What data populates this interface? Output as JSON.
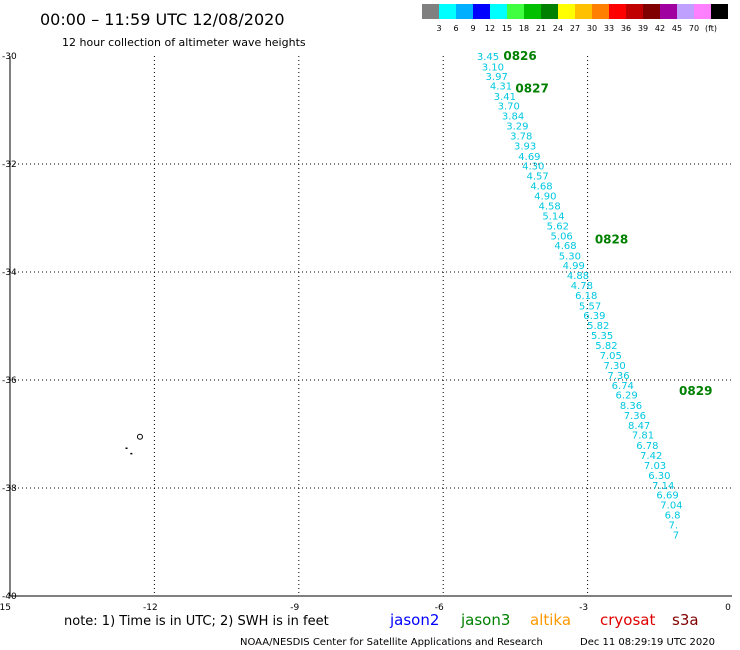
{
  "header": {
    "title": "00:00 – 11:59 UTC 12/08/2020",
    "subtitle": "12 hour collection of altimeter wave heights"
  },
  "colorbar": {
    "colors": [
      "#808080",
      "#00ffff",
      "#00b0ff",
      "#0000ff",
      "#00ffff",
      "#40ff40",
      "#00c000",
      "#008000",
      "#ffff00",
      "#ffc000",
      "#ff8000",
      "#ff0000",
      "#c00000",
      "#800000",
      "#a000a0",
      "#c0a0ff",
      "#ff80ff",
      "#000000"
    ],
    "labels": [
      "3",
      "6",
      "9",
      "12",
      "15",
      "18",
      "21",
      "24",
      "27",
      "30",
      "33",
      "36",
      "39",
      "42",
      "45",
      "70",
      "(ft)"
    ]
  },
  "chart_data": {
    "type": "scatter",
    "title": "00:00 – 11:59 UTC 12/08/2020",
    "xlim": [
      -15,
      0
    ],
    "ylim": [
      -40,
      -30
    ],
    "xticks": [
      "-15",
      "-12",
      "-9",
      "-6",
      "-3",
      "0"
    ],
    "yticks": [
      "-30",
      "-32",
      "-34",
      "-36",
      "-38",
      "-40"
    ],
    "grid": true,
    "series": [
      {
        "color": "#00c8e0",
        "points": [
          {
            "x": -5.3,
            "y": -30.0,
            "label": "3.45"
          },
          {
            "x": -5.2,
            "y": -30.19,
            "label": "3.10"
          },
          {
            "x": -5.12,
            "y": -30.37,
            "label": "3.97"
          },
          {
            "x": -5.03,
            "y": -30.55,
            "label": "4.31"
          },
          {
            "x": -4.95,
            "y": -30.74,
            "label": "3.41"
          },
          {
            "x": -4.87,
            "y": -30.92,
            "label": "3.70"
          },
          {
            "x": -4.78,
            "y": -31.1,
            "label": "3.84"
          },
          {
            "x": -4.69,
            "y": -31.29,
            "label": "3.29"
          },
          {
            "x": -4.61,
            "y": -31.47,
            "label": "3.78"
          },
          {
            "x": -4.53,
            "y": -31.66,
            "label": "3.93"
          },
          {
            "x": -4.44,
            "y": -31.85,
            "label": "4.69"
          },
          {
            "x": -4.36,
            "y": -32.03,
            "label": "4.30"
          },
          {
            "x": -4.27,
            "y": -32.21,
            "label": "4.57"
          },
          {
            "x": -4.19,
            "y": -32.4,
            "label": "4.68"
          },
          {
            "x": -4.11,
            "y": -32.58,
            "label": "4.90"
          },
          {
            "x": -4.02,
            "y": -32.77,
            "label": "4.58"
          },
          {
            "x": -3.94,
            "y": -32.95,
            "label": "5.14"
          },
          {
            "x": -3.85,
            "y": -33.14,
            "label": "5.62"
          },
          {
            "x": -3.77,
            "y": -33.32,
            "label": "5.06"
          },
          {
            "x": -3.69,
            "y": -33.5,
            "label": "4.68"
          },
          {
            "x": -3.6,
            "y": -33.69,
            "label": "5.30"
          },
          {
            "x": -3.52,
            "y": -33.87,
            "label": "4.99"
          },
          {
            "x": -3.43,
            "y": -34.06,
            "label": "4.88"
          },
          {
            "x": -3.35,
            "y": -34.24,
            "label": "4.78"
          },
          {
            "x": -3.26,
            "y": -34.43,
            "label": "6.18"
          },
          {
            "x": -3.18,
            "y": -34.62,
            "label": "5.57"
          },
          {
            "x": -3.09,
            "y": -34.8,
            "label": "6.39"
          },
          {
            "x": -3.01,
            "y": -34.98,
            "label": "5.82"
          },
          {
            "x": -2.93,
            "y": -35.17,
            "label": "5.35"
          },
          {
            "x": -2.84,
            "y": -35.35,
            "label": "5.82"
          },
          {
            "x": -2.75,
            "y": -35.54,
            "label": "7.05"
          },
          {
            "x": -2.67,
            "y": -35.72,
            "label": "7.30"
          },
          {
            "x": -2.59,
            "y": -35.91,
            "label": "7.36"
          },
          {
            "x": -2.5,
            "y": -36.09,
            "label": "6.74"
          },
          {
            "x": -2.42,
            "y": -36.27,
            "label": "6.29"
          },
          {
            "x": -2.33,
            "y": -36.46,
            "label": "8.36"
          },
          {
            "x": -2.25,
            "y": -36.65,
            "label": "7.36"
          },
          {
            "x": -2.16,
            "y": -36.83,
            "label": "8.47"
          },
          {
            "x": -2.08,
            "y": -37.01,
            "label": "7.81"
          },
          {
            "x": -1.99,
            "y": -37.2,
            "label": "6.78"
          },
          {
            "x": -1.91,
            "y": -37.39,
            "label": "7.42"
          },
          {
            "x": -1.83,
            "y": -37.57,
            "label": "7.03"
          },
          {
            "x": -1.74,
            "y": -37.76,
            "label": "6.30"
          },
          {
            "x": -1.66,
            "y": -37.94,
            "label": "7.14"
          },
          {
            "x": -1.57,
            "y": -38.12,
            "label": "6.69"
          },
          {
            "x": -1.49,
            "y": -38.31,
            "label": "7.04"
          },
          {
            "x": -1.4,
            "y": -38.49,
            "label": "6.8"
          },
          {
            "x": -1.32,
            "y": -38.68,
            "label": "7."
          },
          {
            "x": -1.23,
            "y": -38.86,
            "label": "7"
          }
        ]
      }
    ],
    "time_labels": [
      {
        "x": -4.75,
        "y": -30.0,
        "text": "0826"
      },
      {
        "x": -4.5,
        "y": -30.6,
        "text": "0827"
      },
      {
        "x": -2.85,
        "y": -33.4,
        "text": "0828"
      },
      {
        "x": -1.1,
        "y": -36.2,
        "text": "0829"
      }
    ],
    "island_points": [
      {
        "x": -12.3,
        "y": -37.05
      },
      {
        "x": -12.6,
        "y": -37.25
      },
      {
        "x": -12.5,
        "y": -37.35
      }
    ]
  },
  "footer": {
    "note": "note: 1) Time is in UTC; 2) SWH is in feet",
    "satellites": [
      {
        "name": "jason2",
        "color": "#0000ff"
      },
      {
        "name": "jason3",
        "color": "#008000"
      },
      {
        "name": "altika",
        "color": "#ff9900"
      },
      {
        "name": "cryosat",
        "color": "#e00000"
      },
      {
        "name": "s3a",
        "color": "#800000"
      }
    ],
    "credit": "NOAA/NESDIS Center for Satellite Applications and Research",
    "timestamp": "Dec 11 08:29:19 UTC 2020"
  }
}
